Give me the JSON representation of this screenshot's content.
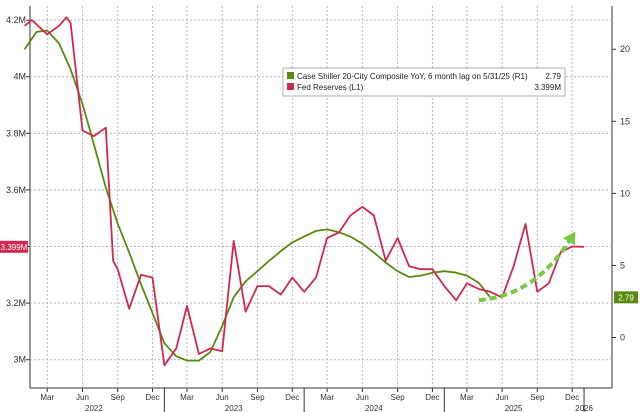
{
  "chart_data": {
    "type": "line",
    "title": "",
    "xlabel": "",
    "x_ticks": [
      {
        "label": "Mar",
        "date": "2022-03"
      },
      {
        "label": "Jun",
        "date": "2022-06"
      },
      {
        "label": "Sep",
        "date": "2022-09"
      },
      {
        "label": "Dec",
        "date": "2022-12"
      },
      {
        "label": "Mar",
        "date": "2023-03"
      },
      {
        "label": "Jun",
        "date": "2023-06"
      },
      {
        "label": "Sep",
        "date": "2023-09"
      },
      {
        "label": "Dec",
        "date": "2023-12"
      },
      {
        "label": "Mar",
        "date": "2024-03"
      },
      {
        "label": "Jun",
        "date": "2024-06"
      },
      {
        "label": "Sep",
        "date": "2024-09"
      },
      {
        "label": "Dec",
        "date": "2024-12"
      },
      {
        "label": "Mar",
        "date": "2025-03"
      },
      {
        "label": "Jun",
        "date": "2025-06"
      },
      {
        "label": "Sep",
        "date": "2025-09"
      },
      {
        "label": "Dec",
        "date": "2025-12"
      }
    ],
    "year_labels": [
      {
        "label": "2022",
        "date": "2022-07"
      },
      {
        "label": "2023",
        "date": "2023-07"
      },
      {
        "label": "2024",
        "date": "2024-07"
      },
      {
        "label": "2025",
        "date": "2025-07"
      },
      {
        "label": "2026",
        "date": "2026-01"
      }
    ],
    "x_range": [
      "2022-01-15",
      "2026-03-15"
    ],
    "left_axis": {
      "range": [
        2.9,
        4.25
      ],
      "tick_values": [
        3.0,
        3.2,
        3.4,
        3.6,
        3.8,
        4.0,
        4.2
      ],
      "tick_labels": [
        "3M",
        "3.2M",
        "3.4M",
        "3.6M",
        "3.8M",
        "4M",
        "4.2M"
      ]
    },
    "right_axis": {
      "range": [
        -3.5,
        23
      ],
      "tick_values": [
        0,
        5,
        10,
        15,
        20
      ],
      "tick_labels": [
        "0",
        "5",
        "10",
        "15",
        "20"
      ]
    },
    "grid": true,
    "legend_position": "top-right",
    "series": [
      {
        "name": "Case Shiller 20-City Composite YoY, 6 month lag on 5/31/25 (R1)",
        "legend_value": "2.79",
        "axis": "right",
        "color": "#5a8a12",
        "x": [
          "2022-01",
          "2022-02",
          "2022-03",
          "2022-04",
          "2022-05",
          "2022-06",
          "2022-07",
          "2022-08",
          "2022-09",
          "2022-10",
          "2022-11",
          "2022-12",
          "2023-01",
          "2023-02",
          "2023-03",
          "2023-04",
          "2023-05",
          "2023-06",
          "2023-07",
          "2023-08",
          "2023-09",
          "2023-10",
          "2023-11",
          "2023-12",
          "2024-01",
          "2024-02",
          "2024-03",
          "2024-04",
          "2024-05",
          "2024-06",
          "2024-07",
          "2024-08",
          "2024-09",
          "2024-10",
          "2024-11",
          "2024-12",
          "2025-01",
          "2025-02",
          "2025-03",
          "2025-04",
          "2025-05"
        ],
        "values": [
          20.0,
          21.2,
          21.3,
          20.4,
          18.6,
          16.2,
          13.4,
          10.4,
          7.9,
          5.9,
          3.7,
          1.7,
          -0.4,
          -1.3,
          -1.6,
          -1.6,
          -1.0,
          0.8,
          2.8,
          3.9,
          4.6,
          5.3,
          6.0,
          6.6,
          7.0,
          7.4,
          7.5,
          7.3,
          7.0,
          6.5,
          5.9,
          5.2,
          4.6,
          4.2,
          4.3,
          4.5,
          4.6,
          4.5,
          4.3,
          3.8,
          2.79
        ]
      },
      {
        "name": "Fed Reserves (L1)",
        "legend_value": "3.399M",
        "axis": "left",
        "color": "#d1294c",
        "x": [
          "2022-01",
          "2022-01-20",
          "2022-03",
          "2022-04",
          "2022-04-20",
          "2022-05",
          "2022-06",
          "2022-07",
          "2022-08",
          "2022-08-20",
          "2022-09",
          "2022-10",
          "2022-11",
          "2022-12",
          "2023-01",
          "2023-02",
          "2023-03",
          "2023-04",
          "2023-05",
          "2023-06",
          "2023-07",
          "2023-08",
          "2023-09",
          "2023-10",
          "2023-11",
          "2023-12",
          "2024-01",
          "2024-02",
          "2024-03",
          "2024-04",
          "2024-05",
          "2024-06",
          "2024-07",
          "2024-08",
          "2024-09",
          "2024-10",
          "2024-11",
          "2024-12",
          "2025-01",
          "2025-02",
          "2025-03",
          "2025-04",
          "2025-05",
          "2025-06",
          "2025-07",
          "2025-08",
          "2025-09",
          "2025-10",
          "2025-11",
          "2025-12",
          "2026-01"
        ],
        "values": [
          4.18,
          4.2,
          4.15,
          4.18,
          4.21,
          4.19,
          3.81,
          3.79,
          3.82,
          3.35,
          3.32,
          3.18,
          3.3,
          3.29,
          2.98,
          3.04,
          3.19,
          3.02,
          3.04,
          3.03,
          3.42,
          3.17,
          3.26,
          3.26,
          3.23,
          3.29,
          3.24,
          3.29,
          3.43,
          3.45,
          3.51,
          3.54,
          3.51,
          3.35,
          3.43,
          3.33,
          3.32,
          3.32,
          3.26,
          3.21,
          3.27,
          3.25,
          3.24,
          3.22,
          3.33,
          3.48,
          3.24,
          3.27,
          3.38,
          3.4,
          3.399
        ]
      }
    ],
    "annotations": [
      {
        "type": "dashed-arrow",
        "color": "#7ac943",
        "from": {
          "date": "2025-04",
          "value": 2.6
        },
        "to": {
          "date": "2025-12",
          "value": 7.0
        }
      }
    ],
    "last_value_labels": [
      {
        "axis": "left",
        "label": "3.399M",
        "value": 3.399,
        "color": "#d1294c"
      },
      {
        "axis": "right",
        "label": "2.79",
        "value": 2.79,
        "color": "#5a8a12"
      }
    ]
  }
}
